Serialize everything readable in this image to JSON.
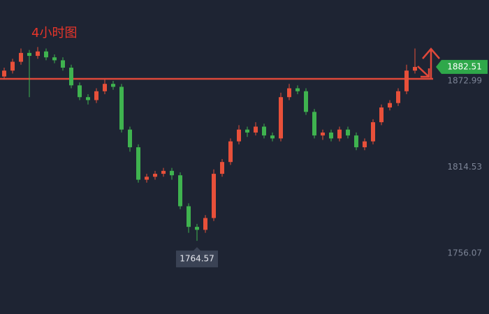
{
  "chart_data": {
    "type": "candlestick",
    "title": "4小时图",
    "categories": [
      null,
      null,
      null,
      null,
      null,
      null,
      null,
      null,
      null,
      null,
      null,
      null,
      null,
      null,
      null,
      null,
      null,
      null,
      null,
      null,
      null,
      null,
      null,
      null,
      null,
      null,
      null,
      null,
      null,
      null,
      null,
      null,
      null,
      null,
      null,
      null,
      null,
      null,
      null,
      null,
      null,
      null,
      null,
      null,
      null,
      null,
      null,
      null,
      null,
      null
    ],
    "open": [
      1876,
      1880,
      1886,
      1892,
      1890,
      1893,
      1889,
      1887,
      1882,
      1870,
      1862,
      1860,
      1866,
      1871,
      1869,
      1840,
      1828,
      1806,
      1808,
      1810,
      1812,
      1809,
      1788,
      1774,
      1772,
      1780,
      1810,
      1818,
      1832,
      1840,
      1838,
      1842,
      1836,
      1834,
      1862,
      1868,
      1866,
      1852,
      1836,
      1838,
      1834,
      1840,
      1836,
      1828,
      1832,
      1845,
      1855,
      1858,
      1866,
      1880
    ],
    "high": [
      1882,
      1888,
      1895,
      1894,
      1896,
      1895,
      1891,
      1889,
      1884,
      1872,
      1864,
      1868,
      1874,
      1873,
      1871,
      1842,
      1830,
      1810,
      1812,
      1814,
      1814,
      1811,
      1790,
      1776,
      1782,
      1813,
      1820,
      1834,
      1843,
      1842,
      1845,
      1844,
      1838,
      1865,
      1871,
      1870,
      1868,
      1854,
      1840,
      1840,
      1842,
      1842,
      1838,
      1834,
      1847,
      1857,
      1860,
      1868,
      1884,
      1895
    ],
    "low": [
      1874,
      1878,
      1884,
      1862,
      1888,
      1887,
      1885,
      1880,
      1868,
      1860,
      1857,
      1858,
      1864,
      1867,
      1838,
      1825,
      1804,
      1804,
      1806,
      1808,
      1806,
      1786,
      1770,
      1764.57,
      1770,
      1778,
      1808,
      1816,
      1830,
      1835,
      1836,
      1834,
      1832,
      1832,
      1860,
      1864,
      1850,
      1834,
      1833,
      1832,
      1832,
      1834,
      1826,
      1826,
      1830,
      1843,
      1853,
      1856,
      1864,
      1878
    ],
    "close": [
      1880,
      1886,
      1892,
      1890,
      1893,
      1889,
      1887,
      1882,
      1870,
      1862,
      1860,
      1866,
      1871,
      1869,
      1840,
      1828,
      1806,
      1808,
      1810,
      1812,
      1809,
      1788,
      1774,
      1772,
      1780,
      1810,
      1818,
      1832,
      1840,
      1838,
      1842,
      1836,
      1834,
      1862,
      1868,
      1866,
      1852,
      1836,
      1838,
      1834,
      1840,
      1836,
      1828,
      1832,
      1845,
      1855,
      1858,
      1866,
      1880,
      1882.51
    ],
    "up_color": "#e8503a",
    "down_color": "#3fb34f",
    "ylim": [
      1714.9,
      1927.9
    ],
    "yticks": [
      1756.07,
      1814.53,
      1872.99
    ],
    "hline": 1874.4,
    "hline_color": "#e0483a"
  }
}
